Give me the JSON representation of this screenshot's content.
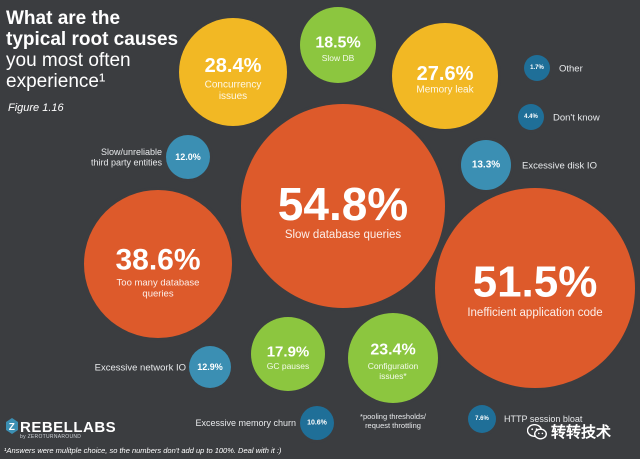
{
  "header": {
    "title_line1": "What are the",
    "title_line2": "typical root causes",
    "title_line3": "you most often",
    "title_line4": "experience¹",
    "figure": "Figure 1.16"
  },
  "brand": {
    "logo": "REBELLABS",
    "tagline": "by ZEROTURNAROUND"
  },
  "footnote": "¹Answers were mulitple choice, so the numbers don't add up to 100%. Deal with it :)",
  "watermark": "转转技术",
  "colors": {
    "background": "#3b3d40",
    "orange": "#dd5a2b",
    "yellow": "#f2b824",
    "green": "#8cc63f",
    "blue": "#3b8fb3",
    "dark_blue": "#1f6f98"
  },
  "chart_data": {
    "type": "bubble",
    "unit": "%",
    "points": [
      {
        "category": "Slow database queries",
        "value": 54.8,
        "value_label": "54.8%",
        "color": "orange"
      },
      {
        "category": "Inefficient application code",
        "value": 51.5,
        "value_label": "51.5%",
        "color": "orange"
      },
      {
        "category": "Too many database queries",
        "value": 38.6,
        "value_label": "38.6%",
        "color": "orange"
      },
      {
        "category": "Concurrency issues",
        "value": 28.4,
        "value_label": "28.4%",
        "color": "yellow"
      },
      {
        "category": "Memory leak",
        "value": 27.6,
        "value_label": "27.6%",
        "color": "yellow"
      },
      {
        "category": "Configuration issues*",
        "value": 23.4,
        "value_label": "23.4%",
        "color": "green",
        "note": "*pooling thresholds/ request throttling"
      },
      {
        "category": "Slow DB",
        "value": 18.5,
        "value_label": "18.5%",
        "color": "green"
      },
      {
        "category": "GC pauses",
        "value": 17.9,
        "value_label": "17.9%",
        "color": "green"
      },
      {
        "category": "Excessive disk IO",
        "value": 13.3,
        "value_label": "13.3%",
        "color": "blue"
      },
      {
        "category": "Excessive network IO",
        "value": 12.9,
        "value_label": "12.9%",
        "color": "blue"
      },
      {
        "category": "Slow/unreliable third party entities",
        "value": 12.0,
        "value_label": "12.0%",
        "color": "blue"
      },
      {
        "category": "Excessive memory churn",
        "value": 10.6,
        "value_label": "10.6%",
        "color": "dark_blue"
      },
      {
        "category": "HTTP session bloat",
        "value": 7.6,
        "value_label": "7.6%",
        "color": "dark_blue"
      },
      {
        "category": "Don't know",
        "value": 4.4,
        "value_label": "4.4%",
        "color": "dark_blue"
      },
      {
        "category": "Other",
        "value": 1.7,
        "value_label": "1.7%",
        "color": "dark_blue"
      }
    ]
  }
}
